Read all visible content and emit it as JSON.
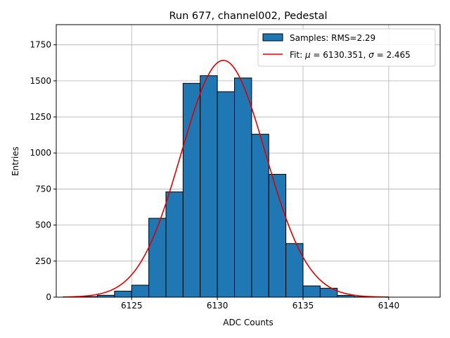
{
  "chart_data": {
    "type": "bar",
    "title": "Run 677, channel002, Pedestal",
    "xlabel": "ADC Counts",
    "ylabel": "Entries",
    "xlim": [
      6120.6,
      6143.0
    ],
    "ylim": [
      0,
      1890
    ],
    "xticks": [
      6125,
      6130,
      6135,
      6140
    ],
    "yticks": [
      0,
      250,
      500,
      750,
      1000,
      1250,
      1500,
      1750
    ],
    "grid": true,
    "legend_position": "top-right",
    "histogram": {
      "name": "Samples: RMS=2.29",
      "color": "#1f77b4",
      "bins": [
        {
          "left": 6121,
          "right": 6122,
          "count": 2
        },
        {
          "left": 6122,
          "right": 6123,
          "count": 4
        },
        {
          "left": 6123,
          "right": 6124,
          "count": 13
        },
        {
          "left": 6124,
          "right": 6125,
          "count": 42
        },
        {
          "left": 6125,
          "right": 6126,
          "count": 83
        },
        {
          "left": 6126,
          "right": 6127,
          "count": 547
        },
        {
          "left": 6127,
          "right": 6128,
          "count": 730
        },
        {
          "left": 6128,
          "right": 6129,
          "count": 1483
        },
        {
          "left": 6129,
          "right": 6130,
          "count": 1536
        },
        {
          "left": 6130,
          "right": 6131,
          "count": 1425
        },
        {
          "left": 6131,
          "right": 6132,
          "count": 1520
        },
        {
          "left": 6132,
          "right": 6133,
          "count": 1130
        },
        {
          "left": 6133,
          "right": 6134,
          "count": 852
        },
        {
          "left": 6134,
          "right": 6135,
          "count": 372
        },
        {
          "left": 6135,
          "right": 6136,
          "count": 78
        },
        {
          "left": 6136,
          "right": 6137,
          "count": 62
        },
        {
          "left": 6137,
          "right": 6138,
          "count": 12
        },
        {
          "left": 6138,
          "right": 6139,
          "count": 3
        }
      ]
    },
    "fit": {
      "name_prefix": "Fit: ",
      "mu_symbol": "μ",
      "mu_text": " = 6130.351, ",
      "sigma_symbol": "σ",
      "sigma_text": " = 2.465",
      "mu": 6130.351,
      "sigma": 2.465,
      "peak": 1642,
      "x_range": [
        6121,
        6140
      ],
      "color": "#e00000"
    }
  }
}
